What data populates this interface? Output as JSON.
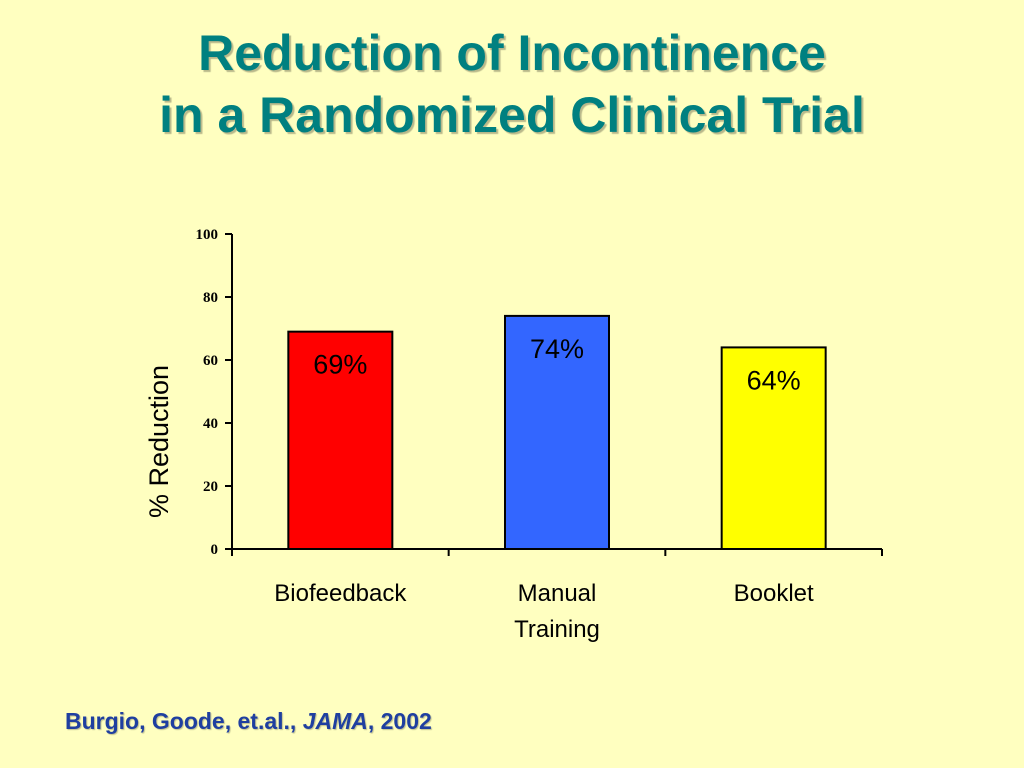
{
  "title": {
    "line1": "Reduction of Incontinence",
    "line2": "in a Randomized Clinical Trial"
  },
  "chart_data": {
    "type": "bar",
    "categories": [
      "Biofeedback",
      "Manual\nTraining",
      "Booklet"
    ],
    "values": [
      69,
      74,
      64
    ],
    "data_labels": [
      "69%",
      "74%",
      "64%"
    ],
    "colors": [
      "#FF0000",
      "#3366FF",
      "#FFFF00"
    ],
    "ylabel": "% Reduction",
    "xlabel": "",
    "ylim": [
      0,
      100
    ],
    "yticks": [
      0,
      20,
      40,
      60,
      80,
      100
    ],
    "grid": false,
    "legend": "none"
  },
  "citation": {
    "authors": "Burgio, Goode, et.al., ",
    "journal": "JAMA",
    "year": ", 2002"
  },
  "colors": {
    "background": "#FFFFC0",
    "title": "#008080",
    "citation": "#1F3FA0"
  }
}
